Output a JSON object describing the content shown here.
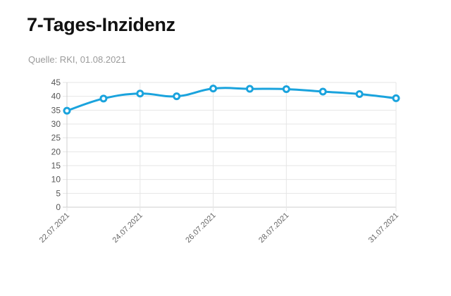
{
  "header": {
    "title": "7-Tages-Inzidenz",
    "source": "Quelle: RKI, 01.08.2021"
  },
  "chart_data": {
    "type": "line",
    "title": "7-Tages-Inzidenz",
    "subtitle": "Quelle: RKI, 01.08.2021",
    "xlabel": "",
    "ylabel": "",
    "x": [
      "22.07.2021",
      "23.07.2021",
      "24.07.2021",
      "25.07.2021",
      "26.07.2021",
      "27.07.2021",
      "28.07.2021",
      "29.07.2021",
      "30.07.2021",
      "31.07.2021"
    ],
    "x_tick_labels": [
      "22.07.2021",
      "24.07.2021",
      "26.07.2021",
      "28.07.2021",
      "31.07.2021"
    ],
    "series": [
      {
        "values": [
          34.8,
          39.2,
          41.0,
          40.0,
          42.8,
          42.7,
          42.6,
          41.7,
          40.8,
          39.3
        ]
      }
    ],
    "ylim": [
      0,
      45
    ],
    "yticks": [
      0,
      5,
      10,
      15,
      20,
      25,
      30,
      35,
      40,
      45
    ],
    "grid": true,
    "legend": "none",
    "colors": {
      "line": "#1aa3dd",
      "grid": "#e6e6e6",
      "axis": "#cfcfcf"
    }
  }
}
